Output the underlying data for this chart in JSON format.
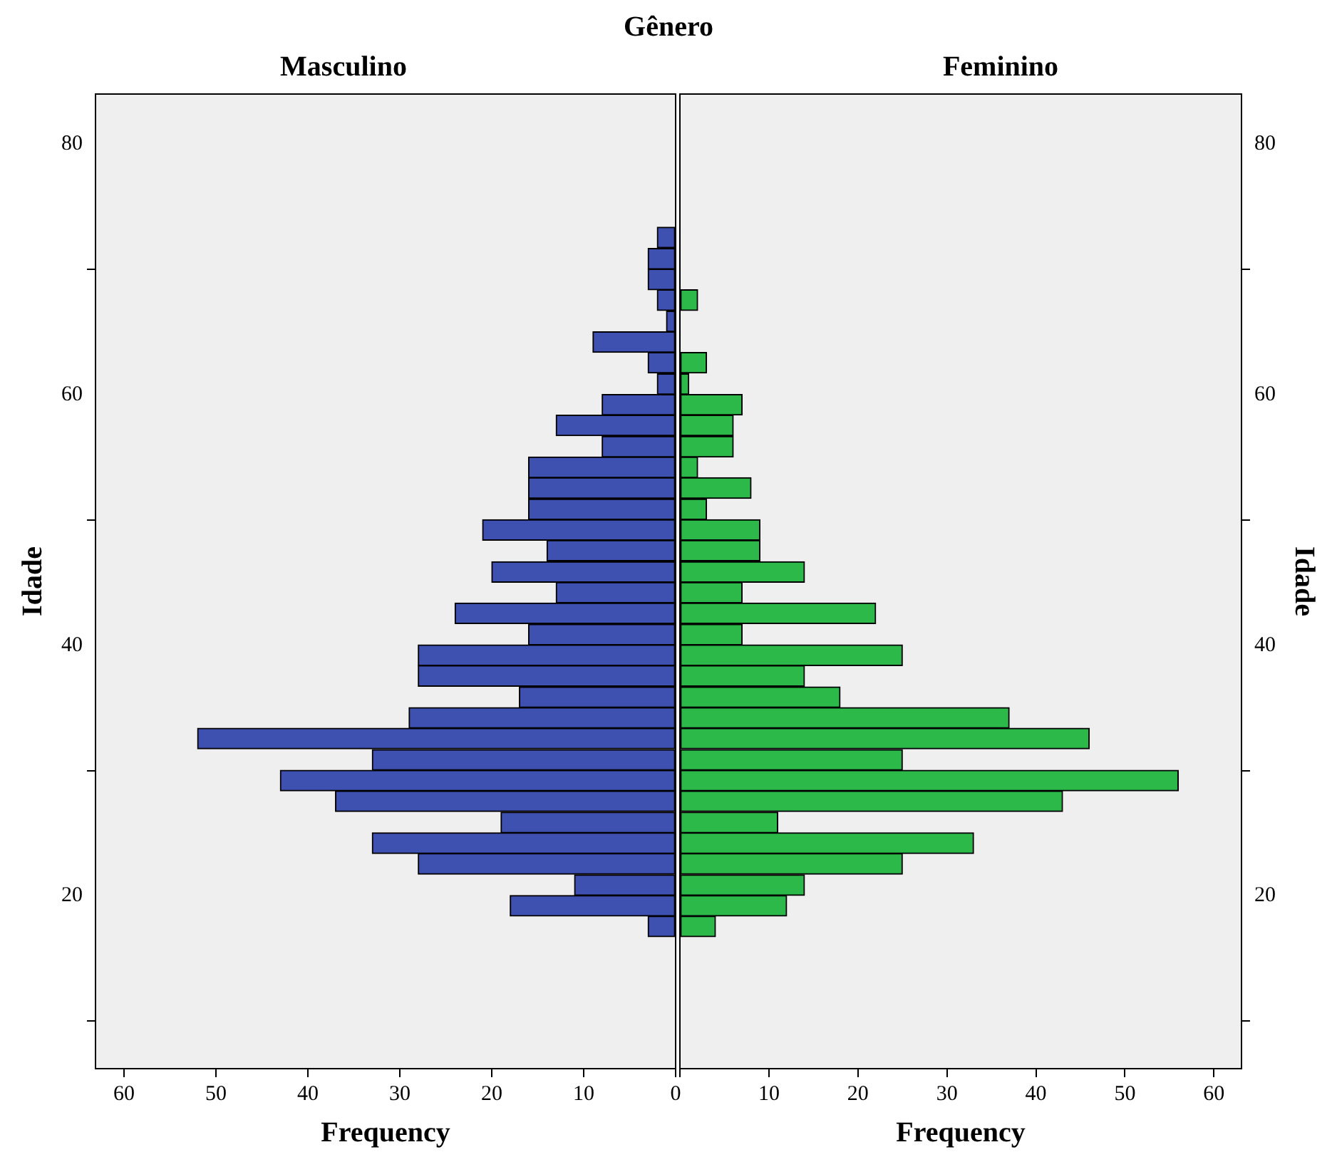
{
  "chart_data": [
    {
      "type": "histogram",
      "title": "Gênero",
      "subtitle": "Masculino",
      "xlabel": "Frequency",
      "ylabel": "Idade",
      "orientation": "horizontal",
      "color": "#3f51b0",
      "bins": [
        16.7,
        18.4,
        20.0,
        21.7,
        23.4,
        25.0,
        26.7,
        28.4,
        30.0,
        31.7,
        33.4,
        35.0,
        36.7,
        38.4,
        40.0,
        41.7,
        43.4,
        45.0,
        46.7,
        48.4,
        50.0,
        51.7,
        53.4,
        55.0,
        56.7,
        58.4,
        60.0,
        61.7,
        63.4,
        65.0,
        66.7,
        68.4,
        70.0,
        71.7,
        73.4
      ],
      "values": [
        3,
        18,
        11,
        28,
        33,
        19,
        37,
        43,
        33,
        52,
        29,
        17,
        28,
        28,
        16,
        24,
        13,
        20,
        14,
        21,
        16,
        16,
        16,
        8,
        13,
        8,
        2,
        3,
        9,
        1,
        2,
        3,
        3,
        2
      ],
      "xlim": [
        63.1,
        0
      ],
      "xticks": [
        0,
        10,
        20,
        30,
        40,
        50,
        60
      ],
      "ylim": [
        6.2,
        84.0
      ],
      "yticks": [
        20,
        40,
        60,
        80
      ]
    },
    {
      "type": "histogram",
      "subtitle": "Feminino",
      "xlabel": "Frequency",
      "ylabel": "Idade",
      "orientation": "horizontal",
      "color": "#2db84a",
      "bins": [
        16.7,
        18.4,
        20.0,
        21.7,
        23.4,
        25.0,
        26.7,
        28.4,
        30.0,
        31.7,
        33.4,
        35.0,
        36.7,
        38.4,
        40.0,
        41.7,
        43.4,
        45.0,
        46.7,
        48.4,
        50.0,
        51.7,
        53.4,
        55.0,
        56.7,
        58.4,
        60.0,
        61.7,
        63.4,
        65.0,
        66.7,
        68.4,
        70.0,
        71.7,
        73.4
      ],
      "values": [
        4,
        12,
        14,
        25,
        33,
        11,
        43,
        56,
        25,
        46,
        37,
        18,
        14,
        25,
        7,
        22,
        7,
        14,
        9,
        9,
        3,
        8,
        2,
        6,
        6,
        7,
        1,
        3,
        0,
        0,
        2,
        0,
        0,
        0
      ],
      "xlim": [
        0,
        63.1
      ],
      "xticks": [
        {
          "value": 0,
          "label": null
        },
        10,
        20,
        30,
        40,
        50,
        60
      ],
      "ylim": [
        6.2,
        84.0
      ],
      "yticks": [
        20,
        40,
        60,
        80
      ]
    }
  ]
}
